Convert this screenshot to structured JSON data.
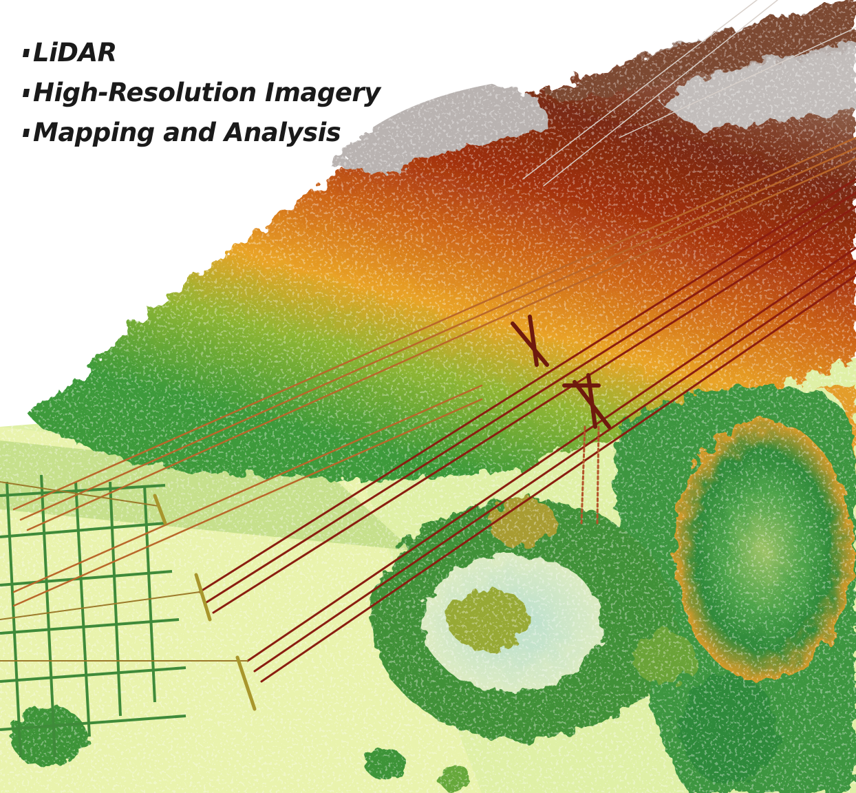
{
  "bullets": [
    {
      "label": "LiDAR"
    },
    {
      "label": "High-Resolution Imagery"
    },
    {
      "label": "Mapping and Analysis"
    }
  ],
  "colors": {
    "ground_light": "#eef3a8",
    "ground_green": "#c5e18a",
    "low_veg": "#3c9a3c",
    "mid_veg": "#e8a126",
    "high_veg": "#a8320f",
    "top_veg": "#6e2810",
    "highest": "#c8c8c8",
    "wires": "#8a1d10"
  }
}
